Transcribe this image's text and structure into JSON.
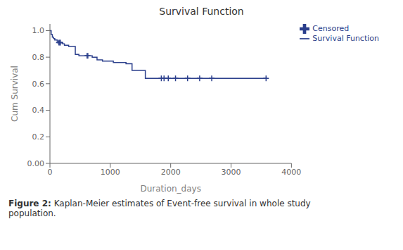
{
  "chart_data": {
    "type": "line",
    "title": "Survival Function",
    "x_label": "Duration_days",
    "y_label": "Cum Survival",
    "xlim": [
      0,
      4000
    ],
    "ylim": [
      0.0,
      1.05
    ],
    "xticks": [
      0,
      1000,
      2000,
      3000,
      4000
    ],
    "yticks": [
      {
        "value": 0.0,
        "label": "0.00"
      },
      0.2,
      0.4,
      0.6,
      0.8,
      {
        "value": 1.0,
        "label": "1.0"
      }
    ],
    "grid": false,
    "legend": "right",
    "series": [
      {
        "name": "Survival Function",
        "type": "step",
        "color": "#2b3f8c",
        "x": [
          0,
          20,
          40,
          60,
          80,
          100,
          120,
          140,
          160,
          180,
          210,
          240,
          270,
          310,
          360,
          420,
          480,
          550,
          630,
          700,
          780,
          870,
          960,
          1050,
          1150,
          1260,
          1360,
          1460,
          1580,
          1680,
          1800,
          1900,
          2000,
          2100,
          2200,
          2400,
          2600,
          2800,
          3000,
          3600
        ],
        "values": [
          1.0,
          0.97,
          0.95,
          0.94,
          0.93,
          0.93,
          0.92,
          0.92,
          0.91,
          0.91,
          0.9,
          0.89,
          0.89,
          0.88,
          0.88,
          0.82,
          0.81,
          0.81,
          0.81,
          0.8,
          0.78,
          0.77,
          0.77,
          0.76,
          0.76,
          0.75,
          0.7,
          0.7,
          0.64,
          0.64,
          0.64,
          0.64,
          0.64,
          0.64,
          0.64,
          0.64,
          0.64,
          0.64,
          0.64,
          0.64
        ]
      },
      {
        "name": "Censored",
        "type": "scatter",
        "marker": "plus",
        "color": "#2b3f8c",
        "x": [
          148,
          162,
          172,
          615,
          628,
          1845,
          1890,
          1960,
          2080,
          2280,
          2480,
          2680,
          3580
        ],
        "values": [
          0.91,
          0.91,
          0.91,
          0.81,
          0.81,
          0.64,
          0.64,
          0.64,
          0.64,
          0.64,
          0.64,
          0.64,
          0.64
        ]
      }
    ],
    "annotations": [
      "Figure 2:",
      " Kaplan-Meier estimates of Event-free survival in whole study\npopulation."
    ]
  }
}
